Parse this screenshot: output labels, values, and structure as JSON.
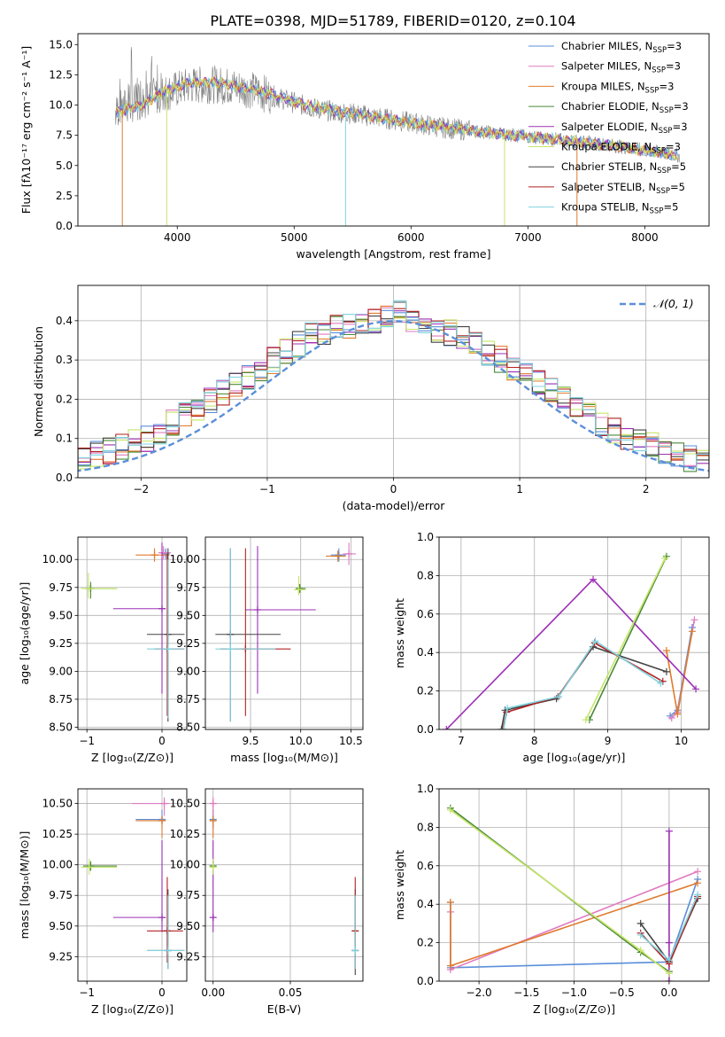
{
  "figure_title": "PLATE=0398, MJD=51789, FIBERID=0120, z=0.104",
  "colors": {
    "Chabrier MILES": "#5b8fd9",
    "Salpeter MILES": "#e07bc0",
    "Kroupa MILES": "#e07b2e",
    "Chabrier ELODIE": "#4a8a3a",
    "Salpeter ELODIE": "#9b30b5",
    "Kroupa ELODIE": "#c7e56a",
    "Chabrier STELIB": "#444444",
    "Salpeter STELIB": "#b22222",
    "Kroupa STELIB": "#7fd3df",
    "gaussian": "#5b8fd9"
  },
  "chart_data": [
    {
      "id": "spectrum",
      "type": "line",
      "title": "PLATE=0398, MJD=51789, FIBERID=0120, z=0.104",
      "xlabel": "wavelength [Angstrom, rest frame]",
      "ylabel": "Flux [fλ10⁻¹⁷ erg cm⁻² s⁻¹ A⁻¹]",
      "xlim": [
        3150,
        8550
      ],
      "ylim": [
        0,
        15.9
      ],
      "xticks": [
        "4000",
        "5000",
        "6000",
        "7000",
        "8000"
      ],
      "yticks": [
        "0.0",
        "2.5",
        "5.0",
        "7.5",
        "10.0",
        "12.5",
        "15.0"
      ],
      "legend_position": "top-right",
      "legend": [
        "Chabrier MILES, N_SSP=3",
        "Salpeter MILES, N_SSP=3",
        "Kroupa MILES, N_SSP=3",
        "Chabrier ELODIE, N_SSP=3",
        "Salpeter ELODIE, N_SSP=3",
        "Kroupa ELODIE, N_SSP=3",
        "Chabrier STELIB, N_SSP=5",
        "Salpeter STELIB, N_SSP=5",
        "Kroupa STELIB, N_SSP=5"
      ],
      "observed_continuum": [
        [
          3470,
          9.6
        ],
        [
          3700,
          10.4
        ],
        [
          3900,
          11.0
        ],
        [
          4100,
          11.6
        ],
        [
          4300,
          11.7
        ],
        [
          4500,
          11.5
        ],
        [
          4700,
          11.1
        ],
        [
          4900,
          10.5
        ],
        [
          5100,
          9.9
        ],
        [
          5300,
          9.5
        ],
        [
          5500,
          9.3
        ],
        [
          5700,
          9.0
        ],
        [
          5900,
          8.7
        ],
        [
          6100,
          8.4
        ],
        [
          6300,
          8.1
        ],
        [
          6500,
          7.9
        ],
        [
          6700,
          7.7
        ],
        [
          6900,
          7.5
        ],
        [
          7100,
          7.3
        ],
        [
          7300,
          7.1
        ],
        [
          7500,
          6.9
        ],
        [
          7700,
          6.7
        ],
        [
          7900,
          6.4
        ],
        [
          8100,
          6.1
        ],
        [
          8300,
          5.8
        ]
      ],
      "model_continuum": [
        [
          3470,
          9.4
        ],
        [
          3700,
          10.0
        ],
        [
          3900,
          11.2
        ],
        [
          4100,
          11.8
        ],
        [
          4300,
          11.9
        ],
        [
          4500,
          11.6
        ],
        [
          4700,
          11.2
        ],
        [
          4900,
          10.6
        ],
        [
          5100,
          10.0
        ],
        [
          5300,
          9.6
        ],
        [
          5500,
          9.3
        ],
        [
          5700,
          9.0
        ],
        [
          5900,
          8.7
        ],
        [
          6100,
          8.4
        ],
        [
          6300,
          8.2
        ],
        [
          6500,
          7.9
        ],
        [
          6700,
          7.7
        ],
        [
          6900,
          7.5
        ],
        [
          7100,
          7.3
        ],
        [
          7300,
          7.1
        ],
        [
          7500,
          6.9
        ],
        [
          7700,
          6.7
        ],
        [
          7900,
          6.4
        ],
        [
          8100,
          6.1
        ],
        [
          8300,
          5.8
        ]
      ]
    },
    {
      "id": "residuals",
      "type": "line",
      "xlabel": "(data-model)/error",
      "ylabel": "Normed distribution",
      "xlim": [
        -2.5,
        2.5
      ],
      "ylim": [
        0,
        0.49
      ],
      "xticks": [
        "−2",
        "−1",
        "0",
        "1",
        "2"
      ],
      "yticks": [
        "0.0",
        "0.1",
        "0.2",
        "0.3",
        "0.4"
      ],
      "gaussian_label": "𝒩(0, 1)",
      "legend_position": "top-right",
      "bin_width": 0.1,
      "hist_base": [
        0.02,
        0.025,
        0.03,
        0.035,
        0.04,
        0.05,
        0.06,
        0.07,
        0.08,
        0.09,
        0.1,
        0.12,
        0.14,
        0.16,
        0.18,
        0.2,
        0.22,
        0.24,
        0.26,
        0.28,
        0.3,
        0.32,
        0.34,
        0.36,
        0.37,
        0.38,
        0.39,
        0.4,
        0.4,
        0.41,
        0.42,
        0.4,
        0.39,
        0.38,
        0.37,
        0.36,
        0.34,
        0.32,
        0.3,
        0.28,
        0.26,
        0.24,
        0.22,
        0.2,
        0.18,
        0.16,
        0.14,
        0.12,
        0.1,
        0.09,
        0.08,
        0.07,
        0.06,
        0.05,
        0.045,
        0.04,
        0.035,
        0.03,
        0.025,
        0.02
      ]
    },
    {
      "id": "age-vs-Z",
      "type": "scatter",
      "xlabel": "Z [log₁₀(Z/Z⊙)]",
      "ylabel": "age  [log₁₀(age/yr)]",
      "xlim": [
        -1.12,
        0.33
      ],
      "ylim": [
        8.48,
        10.2
      ],
      "xticks": [
        "−1",
        "0"
      ],
      "yticks": [
        "8.50",
        "8.75",
        "9.00",
        "9.25",
        "9.50",
        "9.75",
        "10.00"
      ],
      "points": [
        {
          "model": "Chabrier MILES",
          "x": 0.05,
          "y": 10.05,
          "xlo": 0.0,
          "xhi": 0.1,
          "ylo": 10.0,
          "yhi": 10.1
        },
        {
          "model": "Salpeter MILES",
          "x": 0.02,
          "y": 10.06,
          "xlo": -0.05,
          "xhi": 0.12,
          "ylo": 10.0,
          "yhi": 10.12
        },
        {
          "model": "Kroupa MILES",
          "x": -0.1,
          "y": 10.04,
          "xlo": -0.35,
          "xhi": 0.1,
          "ylo": 9.98,
          "yhi": 10.1
        },
        {
          "model": "Chabrier ELODIE",
          "x": -0.95,
          "y": 9.74,
          "xlo": -1.02,
          "xhi": -0.6,
          "ylo": 9.65,
          "yhi": 9.8
        },
        {
          "model": "Salpeter ELODIE",
          "x": 0.0,
          "y": 9.56,
          "xlo": -0.65,
          "xhi": 0.05,
          "ylo": 8.8,
          "yhi": 10.15
        },
        {
          "model": "Kroupa ELODIE",
          "x": -0.98,
          "y": 9.74,
          "xlo": -1.08,
          "xhi": -0.6,
          "ylo": 9.65,
          "yhi": 9.88
        },
        {
          "model": "Chabrier STELIB",
          "x": 0.08,
          "y": 9.33,
          "xlo": -0.2,
          "xhi": 0.3,
          "ylo": 8.55,
          "yhi": 10.1
        },
        {
          "model": "Salpeter STELIB",
          "x": 0.07,
          "y": 9.2,
          "xlo": -0.1,
          "xhi": 0.3,
          "ylo": 8.6,
          "yhi": 10.05
        },
        {
          "model": "Kroupa STELIB",
          "x": 0.08,
          "y": 9.2,
          "xlo": -0.2,
          "xhi": 0.3,
          "ylo": 8.58,
          "yhi": 10.0
        }
      ]
    },
    {
      "id": "age-vs-mass",
      "type": "scatter",
      "xlabel": "mass [log₁₀(M/M⊙)]",
      "ylabel": "",
      "xlim": [
        9.05,
        10.62
      ],
      "ylim": [
        8.48,
        10.2
      ],
      "xticks": [
        "9.5",
        "10.0",
        "10.5"
      ],
      "yticks": [
        "8.50",
        "8.75",
        "9.00",
        "9.25",
        "9.50",
        "9.75",
        "10.00"
      ],
      "points": [
        {
          "model": "Chabrier MILES",
          "x": 10.38,
          "y": 10.04,
          "xlo": 10.3,
          "xhi": 10.45,
          "ylo": 9.98,
          "yhi": 10.1
        },
        {
          "model": "Salpeter MILES",
          "x": 10.48,
          "y": 10.05,
          "xlo": 10.42,
          "xhi": 10.55,
          "ylo": 9.95,
          "yhi": 10.15
        },
        {
          "model": "Kroupa MILES",
          "x": 10.37,
          "y": 10.03,
          "xlo": 10.25,
          "xhi": 10.45,
          "ylo": 9.98,
          "yhi": 10.08
        },
        {
          "model": "Chabrier ELODIE",
          "x": 9.99,
          "y": 9.74,
          "xlo": 9.95,
          "xhi": 10.05,
          "ylo": 9.7,
          "yhi": 9.78
        },
        {
          "model": "Salpeter ELODIE",
          "x": 9.57,
          "y": 9.55,
          "xlo": 9.45,
          "xhi": 10.15,
          "ylo": 8.8,
          "yhi": 10.12
        },
        {
          "model": "Kroupa ELODIE",
          "x": 9.98,
          "y": 9.73,
          "xlo": 9.93,
          "xhi": 10.05,
          "ylo": 9.68,
          "yhi": 9.85
        },
        {
          "model": "Chabrier STELIB",
          "x": 9.3,
          "y": 9.33,
          "xlo": 9.15,
          "xhi": 9.8,
          "ylo": 8.55,
          "yhi": 10.1
        },
        {
          "model": "Salpeter STELIB",
          "x": 9.45,
          "y": 9.2,
          "xlo": 9.2,
          "xhi": 9.9,
          "ylo": 8.6,
          "yhi": 10.1
        },
        {
          "model": "Kroupa STELIB",
          "x": 9.3,
          "y": 9.2,
          "xlo": 9.15,
          "xhi": 9.75,
          "ylo": 8.55,
          "yhi": 10.1
        }
      ]
    },
    {
      "id": "weight-vs-age",
      "type": "line",
      "xlabel": "age  [log₁₀(age/yr)]",
      "ylabel": "mass weight",
      "xlim": [
        6.7,
        10.38
      ],
      "ylim": [
        0.0,
        1.0
      ],
      "xticks": [
        "7",
        "8",
        "9",
        "10"
      ],
      "yticks": [
        "0.0",
        "0.2",
        "0.4",
        "0.6",
        "0.8",
        "1.0"
      ],
      "series": [
        {
          "model": "Chabrier MILES",
          "x": [
            9.85,
            9.95,
            10.15
          ],
          "y": [
            0.07,
            0.1,
            0.53
          ]
        },
        {
          "model": "Salpeter MILES",
          "x": [
            9.87,
            9.95,
            10.18
          ],
          "y": [
            0.06,
            0.09,
            0.57
          ]
        },
        {
          "model": "Kroupa MILES",
          "x": [
            9.8,
            9.95,
            10.15
          ],
          "y": [
            0.41,
            0.08,
            0.51
          ]
        },
        {
          "model": "Chabrier ELODIE",
          "x": [
            8.75,
            9.8
          ],
          "y": [
            0.05,
            0.9
          ]
        },
        {
          "model": "Salpeter ELODIE",
          "x": [
            6.8,
            8.8,
            10.2
          ],
          "y": [
            0.0,
            0.78,
            0.21
          ]
        },
        {
          "model": "Kroupa ELODIE",
          "x": [
            8.7,
            9.78
          ],
          "y": [
            0.05,
            0.89
          ]
        },
        {
          "model": "Chabrier STELIB",
          "x": [
            7.55,
            7.6,
            8.3,
            8.8,
            9.8
          ],
          "y": [
            0.0,
            0.1,
            0.16,
            0.43,
            0.3
          ]
        },
        {
          "model": "Salpeter STELIB",
          "x": [
            7.57,
            7.62,
            8.32,
            8.82,
            9.75
          ],
          "y": [
            0.0,
            0.09,
            0.17,
            0.45,
            0.25
          ]
        },
        {
          "model": "Kroupa STELIB",
          "x": [
            7.58,
            7.63,
            8.33,
            8.83,
            9.72
          ],
          "y": [
            0.0,
            0.11,
            0.17,
            0.46,
            0.24
          ]
        }
      ]
    },
    {
      "id": "mass-vs-Z",
      "type": "scatter",
      "xlabel": "Z [log₁₀(Z/Z⊙)]",
      "ylabel": "mass [log₁₀(M/M⊙)]",
      "xlim": [
        -1.12,
        0.33
      ],
      "ylim": [
        9.05,
        10.62
      ],
      "xticks": [
        "−1",
        "0"
      ],
      "yticks": [
        "9.25",
        "9.50",
        "9.75",
        "10.00",
        "10.25",
        "10.50"
      ],
      "points": [
        {
          "model": "Chabrier MILES",
          "x": 0.0,
          "y": 10.37,
          "xlo": -0.35,
          "xhi": 0.05,
          "ylo": 10.3,
          "yhi": 10.45
        },
        {
          "model": "Salpeter MILES",
          "x": 0.03,
          "y": 10.5,
          "xlo": -0.4,
          "xhi": 0.1,
          "ylo": 10.4,
          "yhi": 10.55
        },
        {
          "model": "Kroupa MILES",
          "x": 0.0,
          "y": 10.36,
          "xlo": -0.35,
          "xhi": 0.05,
          "ylo": 10.22,
          "yhi": 10.4
        },
        {
          "model": "Chabrier ELODIE",
          "x": -0.95,
          "y": 9.99,
          "xlo": -1.05,
          "xhi": -0.6,
          "ylo": 9.95,
          "yhi": 10.03
        },
        {
          "model": "Salpeter ELODIE",
          "x": 0.0,
          "y": 9.57,
          "xlo": -0.65,
          "xhi": 0.05,
          "ylo": 9.45,
          "yhi": 10.2
        },
        {
          "model": "Kroupa ELODIE",
          "x": -0.97,
          "y": 9.98,
          "xlo": -1.08,
          "xhi": -0.6,
          "ylo": 9.92,
          "yhi": 10.05
        },
        {
          "model": "Chabrier STELIB",
          "x": 0.08,
          "y": 9.3,
          "xlo": -0.2,
          "xhi": 0.3,
          "ylo": 9.15,
          "yhi": 9.8
        },
        {
          "model": "Salpeter STELIB",
          "x": 0.07,
          "y": 9.46,
          "xlo": -0.2,
          "xhi": 0.28,
          "ylo": 9.2,
          "yhi": 9.9
        },
        {
          "model": "Kroupa STELIB",
          "x": 0.08,
          "y": 9.3,
          "xlo": -0.2,
          "xhi": 0.3,
          "ylo": 9.15,
          "yhi": 9.75
        }
      ]
    },
    {
      "id": "mass-vs-ebv",
      "type": "scatter",
      "xlabel": "E(B-V)",
      "ylabel": "",
      "xlim": [
        -0.005,
        0.097
      ],
      "ylim": [
        9.05,
        10.62
      ],
      "xticks": [
        "0.00",
        "0.05"
      ],
      "yticks": [
        "9.25",
        "9.50",
        "9.75",
        "10.00",
        "10.25",
        "10.50"
      ],
      "points": [
        {
          "model": "Chabrier MILES",
          "x": 0.0,
          "y": 10.37,
          "xlo": 0.0,
          "xhi": 0.0,
          "ylo": 10.3,
          "yhi": 10.45
        },
        {
          "model": "Salpeter MILES",
          "x": 0.0,
          "y": 10.5,
          "xlo": 0.0,
          "xhi": 0.0,
          "ylo": 10.4,
          "yhi": 10.55
        },
        {
          "model": "Kroupa MILES",
          "x": 0.0,
          "y": 10.36,
          "xlo": 0.0,
          "xhi": 0.0,
          "ylo": 10.22,
          "yhi": 10.4
        },
        {
          "model": "Chabrier ELODIE",
          "x": 0.0,
          "y": 9.99,
          "xlo": 0.0,
          "xhi": 0.0,
          "ylo": 9.95,
          "yhi": 10.03
        },
        {
          "model": "Salpeter ELODIE",
          "x": 0.0,
          "y": 9.57,
          "xlo": 0.0,
          "xhi": 0.0,
          "ylo": 9.45,
          "yhi": 10.2
        },
        {
          "model": "Kroupa ELODIE",
          "x": 0.0,
          "y": 9.98,
          "xlo": 0.0,
          "xhi": 0.0,
          "ylo": 9.92,
          "yhi": 10.05
        },
        {
          "model": "Chabrier STELIB",
          "x": 0.092,
          "y": 9.3,
          "xlo": 0.092,
          "xhi": 0.092,
          "ylo": 9.1,
          "yhi": 9.8
        },
        {
          "model": "Salpeter STELIB",
          "x": 0.092,
          "y": 9.46,
          "xlo": 0.092,
          "xhi": 0.092,
          "ylo": 9.15,
          "yhi": 9.9
        },
        {
          "model": "Kroupa STELIB",
          "x": 0.092,
          "y": 9.3,
          "xlo": 0.092,
          "xhi": 0.092,
          "ylo": 9.15,
          "yhi": 9.75
        }
      ]
    },
    {
      "id": "weight-vs-Z",
      "type": "line",
      "xlabel": "Z [log₁₀(Z/Z⊙)]",
      "ylabel": "mass weight",
      "xlim": [
        -2.42,
        0.42
      ],
      "ylim": [
        0.0,
        1.0
      ],
      "xticks": [
        "−2.0",
        "−1.5",
        "−1.0",
        "−0.5",
        "0.0"
      ],
      "yticks": [
        "0.0",
        "0.2",
        "0.4",
        "0.6",
        "0.8",
        "1.0"
      ],
      "series": [
        {
          "model": "Chabrier MILES",
          "x": [
            -2.3,
            -2.3,
            0.0,
            0.3
          ],
          "y": [
            0.41,
            0.07,
            0.1,
            0.53
          ]
        },
        {
          "model": "Salpeter MILES",
          "x": [
            -2.3,
            -2.3,
            0.3
          ],
          "y": [
            0.36,
            0.06,
            0.57
          ]
        },
        {
          "model": "Kroupa MILES",
          "x": [
            -2.3,
            -2.3,
            0.3
          ],
          "y": [
            0.41,
            0.08,
            0.51
          ]
        },
        {
          "model": "Chabrier ELODIE",
          "x": [
            -2.3,
            -0.3,
            0.0
          ],
          "y": [
            0.9,
            0.15,
            0.05
          ]
        },
        {
          "model": "Salpeter ELODIE",
          "x": [
            0.0,
            0.0,
            0.0
          ],
          "y": [
            0.0,
            0.78,
            0.2
          ]
        },
        {
          "model": "Kroupa ELODIE",
          "x": [
            -2.3,
            -0.3,
            0.0
          ],
          "y": [
            0.89,
            0.16,
            0.04
          ]
        },
        {
          "model": "Chabrier STELIB",
          "x": [
            -0.3,
            0.0,
            0.3
          ],
          "y": [
            0.3,
            0.1,
            0.43
          ]
        },
        {
          "model": "Salpeter STELIB",
          "x": [
            -0.3,
            0.0,
            0.3
          ],
          "y": [
            0.25,
            0.09,
            0.44
          ]
        },
        {
          "model": "Kroupa STELIB",
          "x": [
            -0.3,
            0.0,
            0.3
          ],
          "y": [
            0.24,
            0.11,
            0.45
          ]
        }
      ]
    }
  ]
}
